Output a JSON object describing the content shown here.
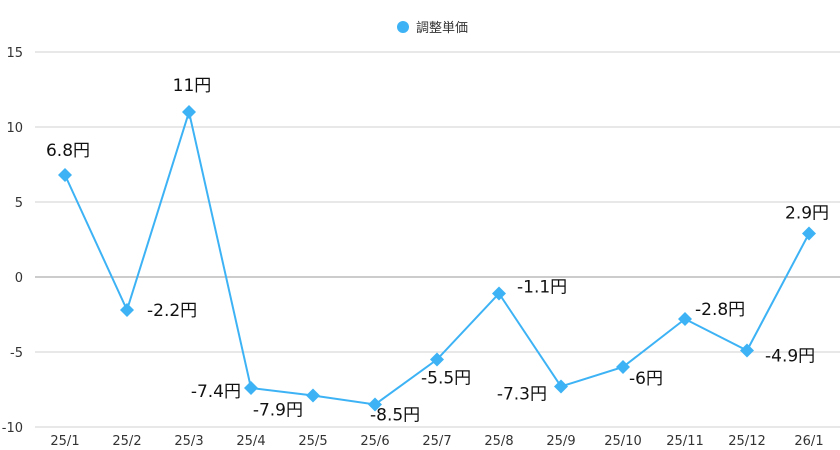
{
  "chart_data": {
    "type": "line",
    "categories": [
      "25/1",
      "25/2",
      "25/3",
      "25/4",
      "25/5",
      "25/6",
      "25/7",
      "25/8",
      "25/9",
      "25/10",
      "25/11",
      "25/12",
      "26/1"
    ],
    "series": [
      {
        "name": "調整単価",
        "values": [
          6.8,
          -2.2,
          11,
          -7.4,
          -7.9,
          -8.5,
          -5.5,
          -1.1,
          -7.3,
          -6,
          -2.8,
          -4.9,
          2.9
        ],
        "labels": [
          "6.8円",
          "-2.2円",
          "11円",
          "-7.4円",
          "-7.9円",
          "-8.5円",
          "-5.5円",
          "-1.1円",
          "-7.3円",
          "-6円",
          "-2.8円",
          "-4.9円",
          "2.9円"
        ],
        "color": "#3db3f5",
        "marker": "diamond"
      }
    ],
    "yticks": [
      "15",
      "10",
      "5",
      "0",
      "-5",
      "-10"
    ],
    "ylim": [
      -10,
      15
    ],
    "grid": true,
    "legend_position": "top-center"
  }
}
